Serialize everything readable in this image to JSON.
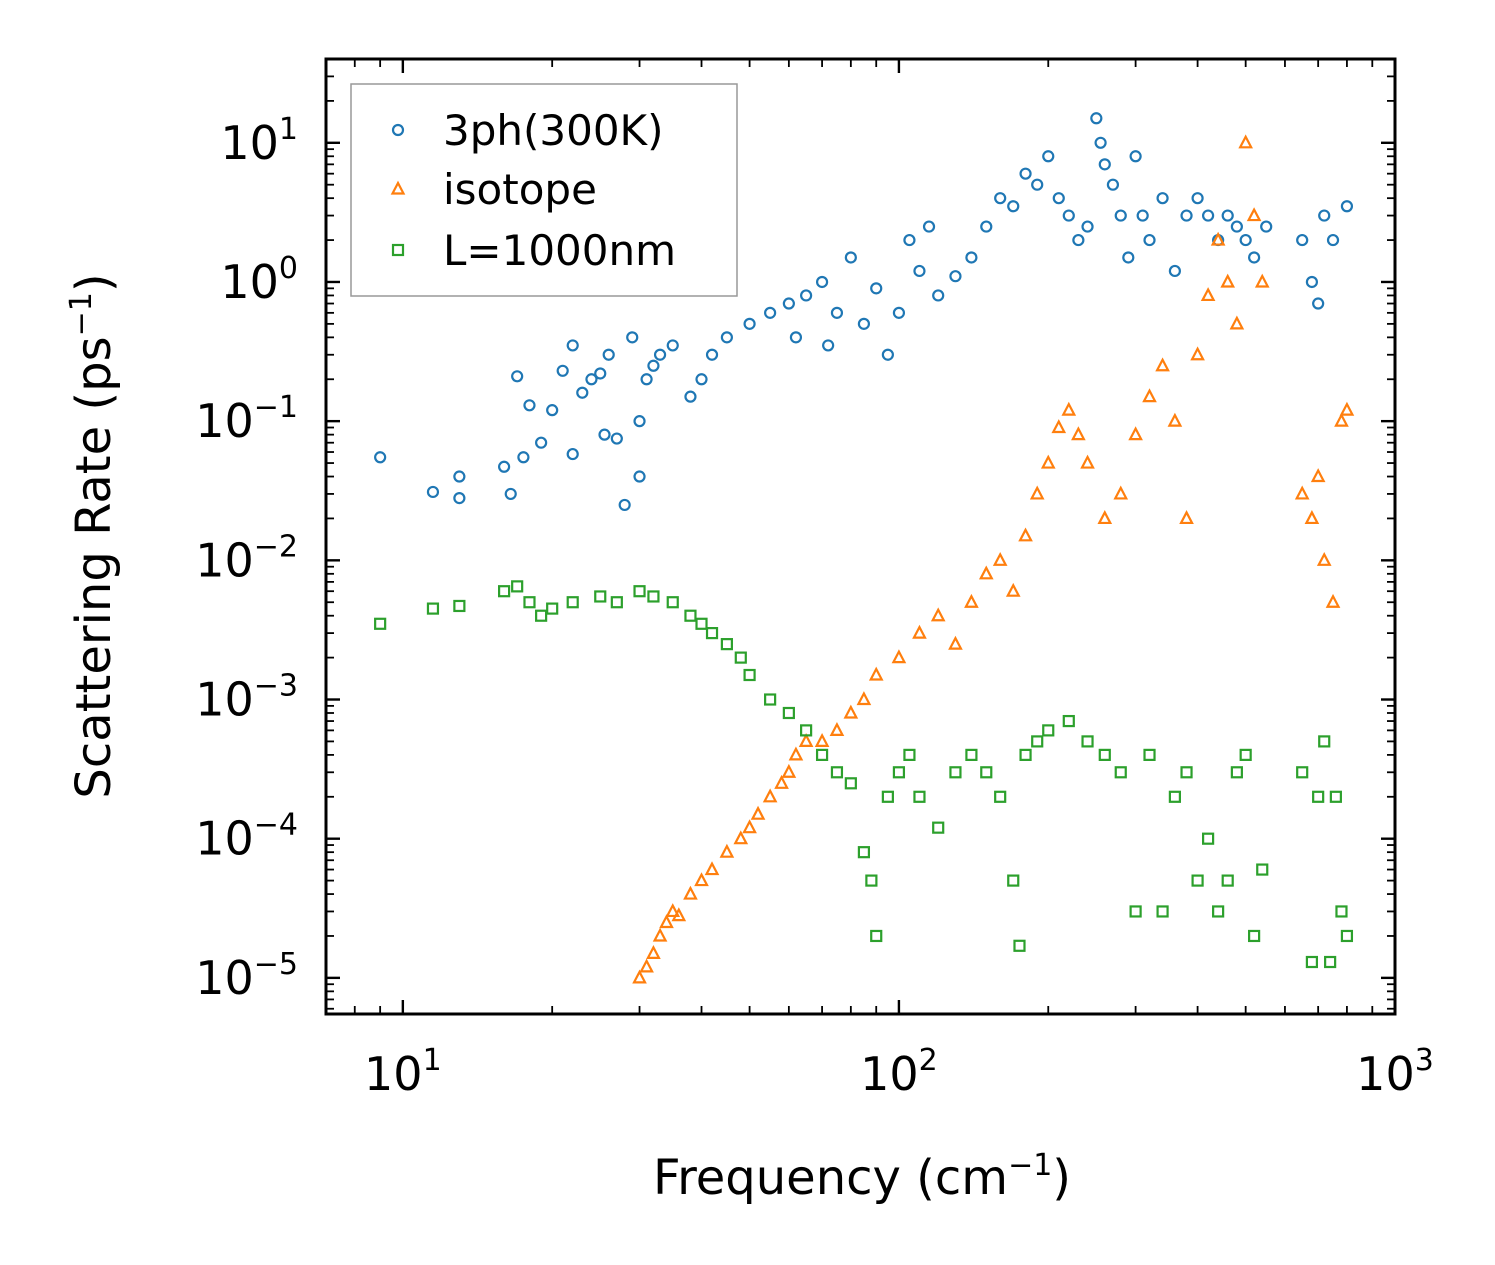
{
  "chart_data": {
    "type": "scatter",
    "title": "",
    "xlabel": "Frequency (cm",
    "xlabel_sup": "−1",
    "xlabel_end": ")",
    "ylabel": "Scattering Rate (ps",
    "ylabel_sup": "−1",
    "ylabel_end": ")",
    "xscale": "log",
    "yscale": "log",
    "xlim": [
      7,
      1000
    ],
    "ylim": [
      5.5e-06,
      40
    ],
    "x_ticks": [
      {
        "value": 10,
        "base": "10",
        "exp": "1"
      },
      {
        "value": 100,
        "base": "10",
        "exp": "2"
      },
      {
        "value": 1000,
        "base": "10",
        "exp": "3"
      }
    ],
    "y_ticks": [
      {
        "value": 10,
        "base": "10",
        "exp": "1"
      },
      {
        "value": 1,
        "base": "10",
        "exp": "0"
      },
      {
        "value": 0.1,
        "base": "10",
        "exp": "−1"
      },
      {
        "value": 0.01,
        "base": "10",
        "exp": "−2"
      },
      {
        "value": 0.001,
        "base": "10",
        "exp": "−3"
      },
      {
        "value": 0.0001,
        "base": "10",
        "exp": "−4"
      },
      {
        "value": 1e-05,
        "base": "10",
        "exp": "−5"
      }
    ],
    "legend_position": "top-left",
    "series": [
      {
        "name": "3ph(300K)",
        "marker": "circle",
        "color": "#1f77b4",
        "x": [
          9,
          11.5,
          13,
          13,
          16,
          16.5,
          17,
          17.5,
          18,
          19,
          20,
          21,
          22,
          22,
          23,
          24,
          25,
          25.5,
          26,
          27,
          28,
          29,
          30,
          30,
          31,
          32,
          33,
          35,
          38,
          40,
          42,
          45,
          50,
          55,
          60,
          62,
          65,
          70,
          72,
          75,
          80,
          85,
          90,
          95,
          100,
          105,
          110,
          115,
          120,
          130,
          140,
          150,
          160,
          170,
          180,
          190,
          200,
          210,
          220,
          230,
          240,
          250,
          255,
          260,
          270,
          280,
          290,
          300,
          310,
          320,
          340,
          360,
          380,
          400,
          420,
          440,
          460,
          480,
          500,
          520,
          550,
          650,
          680,
          700,
          720,
          750,
          800
        ],
        "values": [
          0.055,
          0.031,
          0.04,
          0.028,
          0.047,
          0.03,
          0.21,
          0.055,
          0.13,
          0.07,
          0.12,
          0.23,
          0.058,
          0.35,
          0.16,
          0.2,
          0.22,
          0.08,
          0.3,
          0.075,
          0.025,
          0.4,
          0.1,
          0.04,
          0.2,
          0.25,
          0.3,
          0.35,
          0.15,
          0.2,
          0.3,
          0.4,
          0.5,
          0.6,
          0.7,
          0.4,
          0.8,
          1.0,
          0.35,
          0.6,
          1.5,
          0.5,
          0.9,
          0.3,
          0.6,
          2.0,
          1.2,
          2.5,
          0.8,
          1.1,
          1.5,
          2.5,
          4.0,
          3.5,
          6.0,
          5.0,
          8.0,
          4.0,
          3.0,
          2.0,
          2.5,
          15.0,
          10.0,
          7.0,
          5.0,
          3.0,
          1.5,
          8.0,
          3.0,
          2.0,
          4.0,
          1.2,
          3.0,
          4.0,
          3.0,
          2.0,
          3.0,
          2.5,
          2.0,
          1.5,
          2.5,
          2.0,
          1.0,
          0.7,
          3.0,
          2.0,
          3.5
        ]
      },
      {
        "name": "isotope",
        "marker": "triangle",
        "color": "#ff7f0e",
        "x": [
          30,
          31,
          32,
          33,
          34,
          35,
          36,
          38,
          40,
          42,
          45,
          48,
          50,
          52,
          55,
          58,
          60,
          62,
          65,
          70,
          75,
          80,
          85,
          90,
          100,
          110,
          120,
          130,
          140,
          150,
          160,
          170,
          180,
          190,
          200,
          210,
          220,
          230,
          240,
          260,
          280,
          300,
          320,
          340,
          360,
          380,
          400,
          420,
          440,
          460,
          480,
          500,
          520,
          540,
          650,
          680,
          700,
          720,
          750,
          780,
          800
        ],
        "values": [
          1e-05,
          1.2e-05,
          1.5e-05,
          2e-05,
          2.5e-05,
          3e-05,
          2.8e-05,
          4e-05,
          5e-05,
          6e-05,
          8e-05,
          0.0001,
          0.00012,
          0.00015,
          0.0002,
          0.00025,
          0.0003,
          0.0004,
          0.0005,
          0.0005,
          0.0006,
          0.0008,
          0.001,
          0.0015,
          0.002,
          0.003,
          0.004,
          0.0025,
          0.005,
          0.008,
          0.01,
          0.006,
          0.015,
          0.03,
          0.05,
          0.09,
          0.12,
          0.08,
          0.05,
          0.02,
          0.03,
          0.08,
          0.15,
          0.25,
          0.1,
          0.02,
          0.3,
          0.8,
          2.0,
          1.0,
          0.5,
          10.0,
          3.0,
          1.0,
          0.03,
          0.02,
          0.04,
          0.01,
          0.005,
          0.1,
          0.12
        ]
      },
      {
        "name": "L=1000nm",
        "marker": "square",
        "color": "#2ca02c",
        "x": [
          9,
          11.5,
          13,
          16,
          17,
          18,
          19,
          20,
          22,
          25,
          27,
          30,
          32,
          35,
          38,
          40,
          42,
          45,
          48,
          50,
          55,
          60,
          65,
          70,
          75,
          80,
          85,
          88,
          90,
          95,
          100,
          105,
          110,
          120,
          130,
          140,
          150,
          160,
          170,
          175,
          180,
          190,
          200,
          220,
          240,
          260,
          280,
          300,
          320,
          340,
          360,
          380,
          400,
          420,
          440,
          460,
          480,
          500,
          520,
          540,
          650,
          680,
          700,
          720,
          740,
          760,
          780,
          800
        ],
        "values": [
          0.0035,
          0.0045,
          0.0047,
          0.006,
          0.0065,
          0.005,
          0.004,
          0.0045,
          0.005,
          0.0055,
          0.005,
          0.006,
          0.0055,
          0.005,
          0.004,
          0.0035,
          0.003,
          0.0025,
          0.002,
          0.0015,
          0.001,
          0.0008,
          0.0006,
          0.0004,
          0.0003,
          0.00025,
          8e-05,
          5e-05,
          2e-05,
          0.0002,
          0.0003,
          0.0004,
          0.0002,
          0.00012,
          0.0003,
          0.0004,
          0.0003,
          0.0002,
          5e-05,
          1.7e-05,
          0.0004,
          0.0005,
          0.0006,
          0.0007,
          0.0005,
          0.0004,
          0.0003,
          3e-05,
          0.0004,
          3e-05,
          0.0002,
          0.0003,
          5e-05,
          0.0001,
          3e-05,
          5e-05,
          0.0003,
          0.0004,
          2e-05,
          6e-05,
          0.0003,
          1.3e-05,
          0.0002,
          0.0005,
          1.3e-05,
          0.0002,
          3e-05,
          2e-05
        ]
      }
    ]
  }
}
